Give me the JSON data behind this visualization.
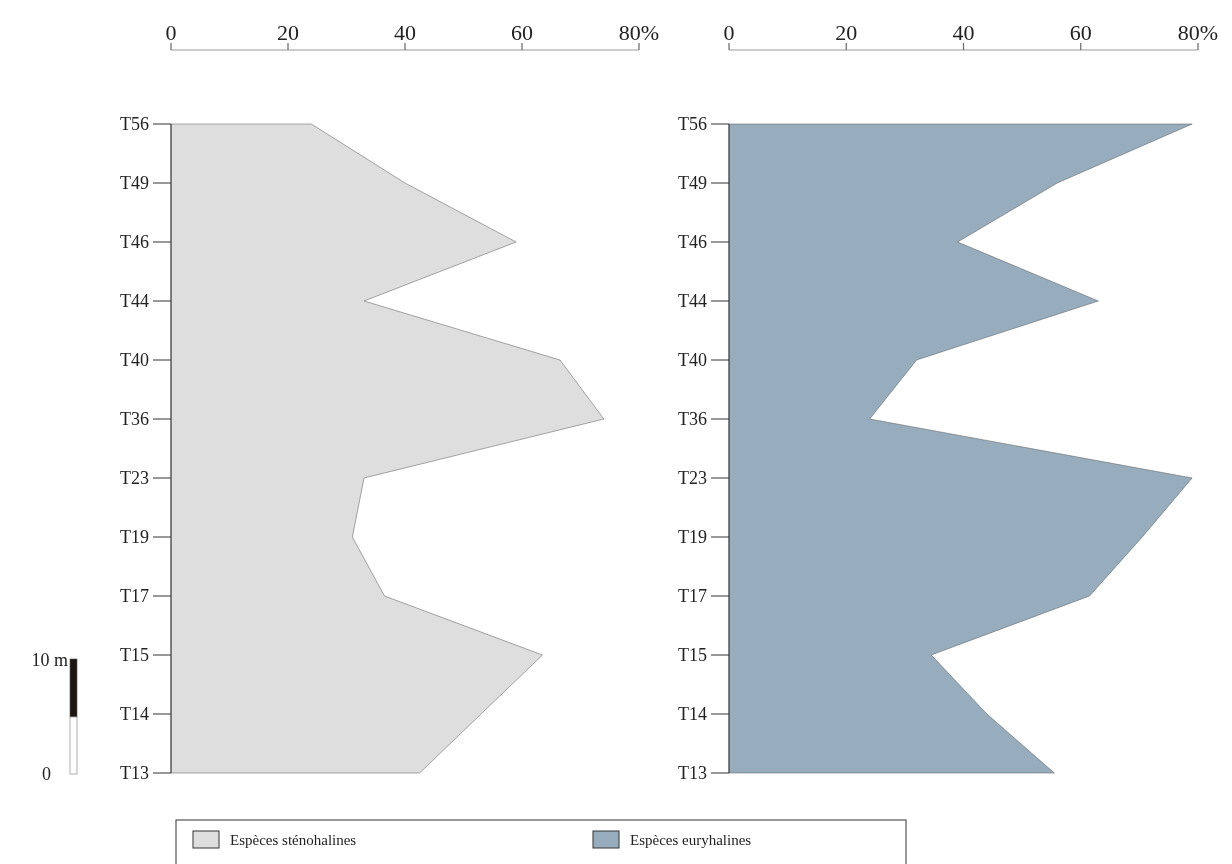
{
  "chart_data": [
    {
      "type": "area",
      "orientation": "horizontal",
      "categories": [
        "T56",
        "T49",
        "T46",
        "T44",
        "T40",
        "T36",
        "T23",
        "T19",
        "T17",
        "T15",
        "T14",
        "T13"
      ],
      "series": [
        {
          "name": "Espèces sténohalines",
          "color": "#dedede",
          "values": [
            24,
            40,
            59,
            33,
            66.5,
            74,
            33,
            31,
            36.5,
            63.5,
            53,
            42.5
          ]
        }
      ],
      "xlim": [
        0,
        80
      ],
      "xticks": [
        0,
        20,
        40,
        60,
        {
          "value": 80,
          "label": "80%"
        }
      ],
      "legend": "bottom",
      "annotations": [
        "10 m",
        "0"
      ]
    },
    {
      "type": "area",
      "orientation": "horizontal",
      "categories": [
        "T56",
        "T49",
        "T46",
        "T44",
        "T40",
        "T36",
        "T23",
        "T19",
        "T17",
        "T15",
        "T14",
        "T13"
      ],
      "series": [
        {
          "name": "Espèces euryhalines",
          "color": "#97adbd",
          "values": [
            79,
            56,
            39,
            63,
            32,
            24,
            79,
            70.5,
            61.5,
            34.5,
            44,
            55.5
          ]
        }
      ],
      "xlim": [
        0,
        80
      ],
      "xticks": [
        0,
        20,
        40,
        60,
        {
          "value": 80,
          "label": "80%"
        }
      ],
      "legend": "bottom"
    }
  ]
}
